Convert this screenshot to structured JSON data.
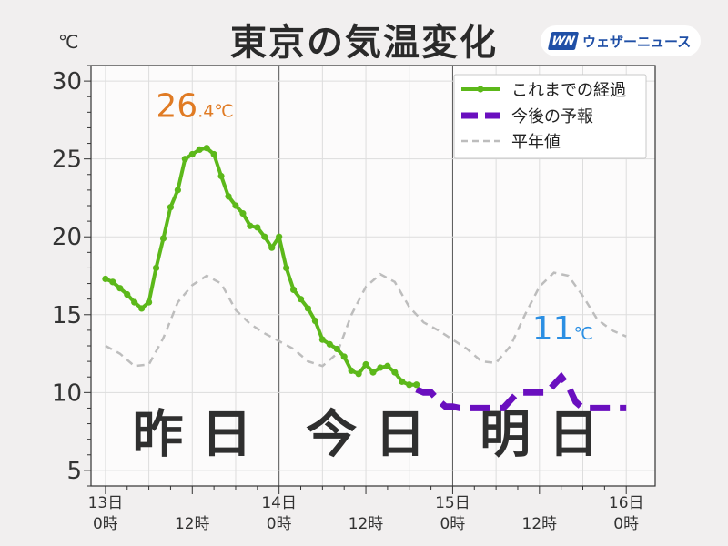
{
  "header": {
    "title": "東京の気温変化",
    "logo_mark": "WN",
    "logo_text": "ウェザーニュース",
    "unit": "℃"
  },
  "chart_data": {
    "type": "line",
    "x_unit": "hours",
    "xlim": [
      -2,
      76
    ],
    "ylim": [
      4,
      31
    ],
    "yticks": [
      5,
      10,
      15,
      20,
      25,
      30
    ],
    "grid": true,
    "legend_position": "top-right",
    "xtick_labels": [
      {
        "x": 0,
        "day": "13日",
        "time": "0時"
      },
      {
        "x": 12,
        "day": "",
        "time": "12時"
      },
      {
        "x": 24,
        "day": "14日",
        "time": "0時"
      },
      {
        "x": 36,
        "day": "",
        "time": "12時"
      },
      {
        "x": 48,
        "day": "15日",
        "time": "0時"
      },
      {
        "x": 60,
        "day": "",
        "time": "12時"
      },
      {
        "x": 72,
        "day": "16日",
        "time": "0時"
      }
    ],
    "series": [
      {
        "name": "これまでの経過",
        "style": "line-markers",
        "color": "#5cb81a",
        "x": [
          0,
          1,
          2,
          3,
          4,
          5,
          6,
          7,
          8,
          9,
          10,
          11,
          12,
          13,
          14,
          15,
          16,
          17,
          18,
          19,
          20,
          21,
          22,
          23,
          24,
          25,
          26,
          27,
          28,
          29,
          30,
          31,
          32,
          33,
          34,
          35,
          36,
          37,
          38,
          39,
          40,
          41,
          42,
          43
        ],
        "y": [
          17.3,
          17.1,
          16.7,
          16.3,
          15.8,
          15.4,
          15.8,
          18.0,
          19.9,
          21.9,
          23.0,
          25.0,
          25.3,
          25.6,
          25.7,
          25.3,
          23.9,
          22.6,
          22.0,
          21.5,
          20.7,
          20.6,
          20.0,
          19.3,
          20.0,
          18.0,
          16.6,
          16.0,
          15.4,
          14.6,
          13.4,
          13.1,
          12.8,
          12.3,
          11.4,
          11.2,
          11.8,
          11.3,
          11.6,
          11.7,
          11.3,
          10.7,
          10.5,
          10.5
        ]
      },
      {
        "name": "今後の予報",
        "style": "dashed-thick",
        "color": "#6a0fbf",
        "x": [
          43,
          44,
          45,
          46,
          47,
          48,
          49,
          50,
          51,
          52,
          53,
          54,
          55,
          56,
          57,
          58,
          59,
          60,
          61,
          62,
          63,
          64,
          65,
          66,
          67,
          68,
          69,
          70,
          71,
          72
        ],
        "y": [
          10.2,
          10.0,
          10.0,
          9.5,
          9.1,
          9.1,
          9.0,
          9.0,
          9.0,
          9.0,
          9.0,
          9.0,
          9.0,
          9.5,
          10.0,
          10.0,
          10.0,
          10.0,
          10.0,
          10.5,
          11.0,
          10.4,
          9.4,
          9.0,
          9.0,
          9.0,
          9.0,
          9.0,
          9.0,
          9.0
        ]
      },
      {
        "name": "平年値",
        "style": "dashed",
        "color": "#bdbdbd",
        "x": [
          0,
          2,
          4,
          6,
          8,
          10,
          12,
          14,
          16,
          18,
          20,
          22,
          24,
          26,
          28,
          30,
          32,
          34,
          36,
          38,
          40,
          42,
          44,
          46,
          48,
          50,
          52,
          54,
          56,
          58,
          60,
          62,
          64,
          66,
          68,
          70,
          72
        ],
        "y": [
          13.0,
          12.5,
          11.7,
          11.8,
          13.5,
          15.8,
          16.9,
          17.5,
          17.0,
          15.3,
          14.4,
          13.8,
          13.3,
          12.8,
          12.0,
          11.7,
          12.5,
          15.0,
          16.8,
          17.6,
          17.1,
          15.5,
          14.5,
          14.0,
          13.4,
          12.8,
          12.0,
          11.9,
          13.0,
          15.0,
          16.8,
          17.7,
          17.5,
          16.2,
          14.7,
          14.0,
          13.6
        ]
      }
    ],
    "annotations": [
      {
        "x": 10,
        "y": 27.7,
        "main": "26",
        "small": ".4℃",
        "color": "#e07b24"
      },
      {
        "x": 62,
        "y": 13.4,
        "main": "11",
        "small": "℃",
        "color": "#2b8fe3"
      }
    ],
    "day_labels": [
      {
        "x": 12,
        "text": "昨 日"
      },
      {
        "x": 36,
        "text": "今 日"
      },
      {
        "x": 60,
        "text": "明 日"
      }
    ]
  }
}
